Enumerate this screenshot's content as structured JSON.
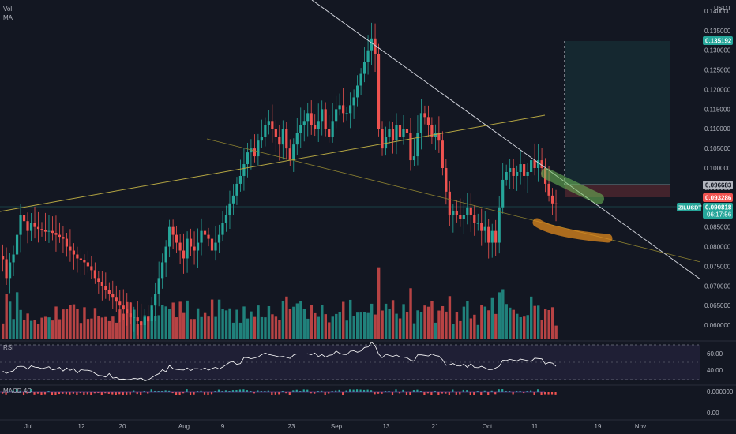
{
  "legend": {
    "vol": "Vol",
    "ma": "MA"
  },
  "currency": "USDT",
  "price_axis": {
    "ticks": [
      "0.140000",
      "0.135000",
      "0.130000",
      "0.125000",
      "0.120000",
      "0.115000",
      "0.110000",
      "0.105000",
      "0.100000",
      "0.095000",
      "0.090000",
      "0.085000",
      "0.080000",
      "0.075000",
      "0.070000",
      "0.065000",
      "0.060000"
    ]
  },
  "tags": {
    "target": "0.135192",
    "entry": "0.096683",
    "stop": "0.093286",
    "symbol": "ZILUSDT",
    "last": "0.090818",
    "countdown": "06:17:56"
  },
  "rsi": {
    "label": "RSI",
    "ticks": [
      "60.00",
      "40.00"
    ]
  },
  "macd": {
    "label": "MACD 4C",
    "ticks": [
      "0.000000",
      "0.00"
    ]
  },
  "x_axis": {
    "labels": [
      "Jul",
      "12",
      "20",
      "Aug",
      "9",
      "23",
      "Sep",
      "13",
      "21",
      "Oct",
      "11",
      "19",
      "Nov"
    ]
  },
  "colors": {
    "up": "#26a69a",
    "down": "#ef5350",
    "trend": "#d1d4dc",
    "ma": "#b5a642",
    "rsi": "#ffffff",
    "rsi_band": "#7e57c2"
  },
  "chart_data": {
    "type": "candlestick",
    "symbol": "ZILUSDT",
    "ylim": [
      0.057,
      0.142
    ],
    "close": [
      0.0768,
      0.072,
      0.076,
      0.078,
      0.083,
      0.088,
      0.0865,
      0.084,
      0.086,
      0.085,
      0.0845,
      0.0842,
      0.0838,
      0.084,
      0.0835,
      0.083,
      0.0825,
      0.082,
      0.08,
      0.079,
      0.078,
      0.077,
      0.0765,
      0.076,
      0.075,
      0.074,
      0.072,
      0.071,
      0.07,
      0.069,
      0.068,
      0.067,
      0.066,
      0.065,
      0.064,
      0.063,
      0.062,
      0.062,
      0.061,
      0.06,
      0.062,
      0.061,
      0.065,
      0.068,
      0.072,
      0.076,
      0.08,
      0.085,
      0.083,
      0.081,
      0.079,
      0.077,
      0.082,
      0.08,
      0.079,
      0.081,
      0.084,
      0.083,
      0.082,
      0.079,
      0.081,
      0.083,
      0.086,
      0.088,
      0.091,
      0.093,
      0.096,
      0.098,
      0.101,
      0.104,
      0.105,
      0.103,
      0.107,
      0.108,
      0.111,
      0.112,
      0.11,
      0.108,
      0.106,
      0.11,
      0.105,
      0.102,
      0.106,
      0.109,
      0.111,
      0.112,
      0.114,
      0.111,
      0.11,
      0.112,
      0.115,
      0.11,
      0.108,
      0.112,
      0.115,
      0.116,
      0.114,
      0.114,
      0.116,
      0.118,
      0.121,
      0.124,
      0.127,
      0.13,
      0.133,
      0.129,
      0.11,
      0.105,
      0.108,
      0.11,
      0.107,
      0.111,
      0.108,
      0.11,
      0.109,
      0.102,
      0.103,
      0.109,
      0.114,
      0.113,
      0.111,
      0.108,
      0.109,
      0.107,
      0.1,
      0.094,
      0.088,
      0.089,
      0.088,
      0.087,
      0.088,
      0.09,
      0.088,
      0.086,
      0.086,
      0.084,
      0.085,
      0.081,
      0.084,
      0.081,
      0.09,
      0.097,
      0.099,
      0.1,
      0.098,
      0.099,
      0.101,
      0.098,
      0.099,
      0.102,
      0.1,
      0.102,
      0.1,
      0.096,
      0.093,
      0.091,
      0.0908
    ]
  }
}
